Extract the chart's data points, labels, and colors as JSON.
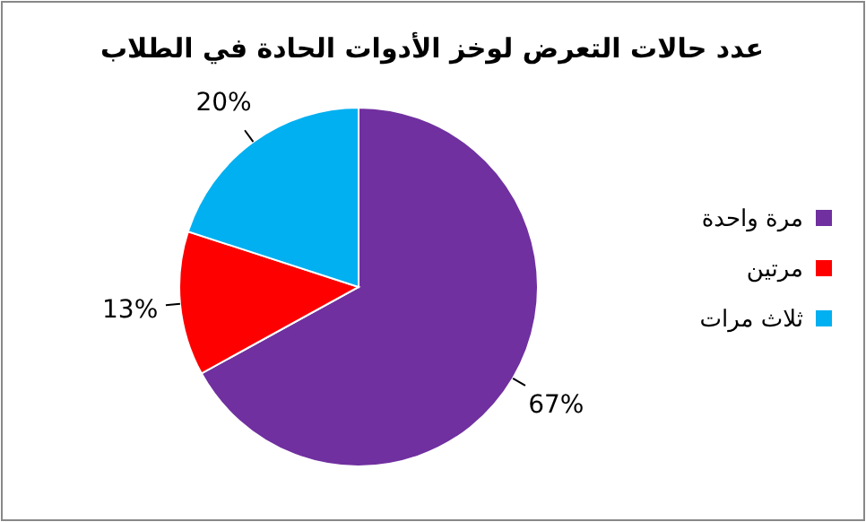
{
  "chart_data": {
    "type": "pie",
    "title": "عدد حالات التعرض لوخز الأدوات الحادة في الطلاب",
    "categories": [
      "مرة واحدة",
      "مرتين",
      "ثلاث مرات"
    ],
    "values": [
      67,
      13,
      20
    ],
    "colors": [
      "#7030a0",
      "#ff0000",
      "#00b0f0"
    ],
    "value_labels": [
      "67%",
      "13%",
      "20%"
    ],
    "legend": "right"
  }
}
